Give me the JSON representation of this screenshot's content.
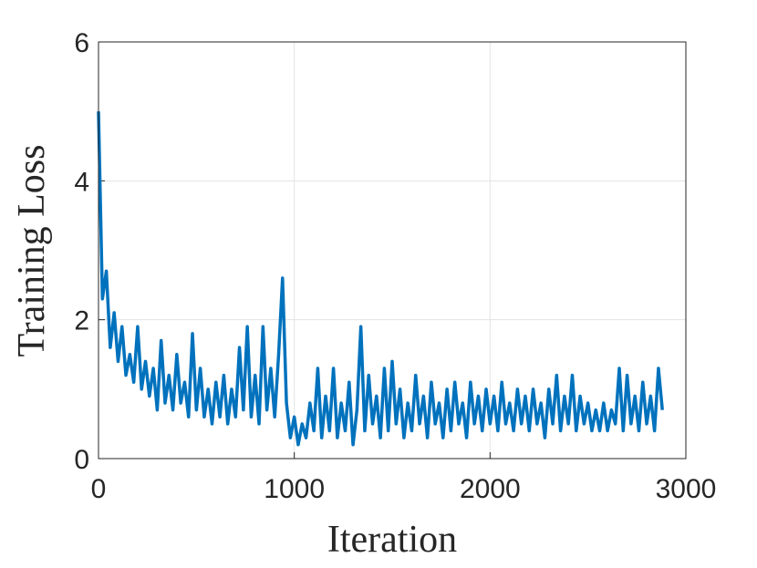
{
  "chart_data": {
    "type": "line",
    "xlabel": "Iteration",
    "ylabel": "Training Loss",
    "x": [
      0,
      20,
      40,
      60,
      80,
      100,
      120,
      140,
      160,
      180,
      200,
      220,
      240,
      260,
      280,
      300,
      320,
      340,
      360,
      380,
      400,
      420,
      440,
      460,
      480,
      500,
      520,
      540,
      560,
      580,
      600,
      620,
      640,
      660,
      680,
      700,
      720,
      740,
      760,
      780,
      800,
      820,
      840,
      860,
      880,
      900,
      920,
      940,
      960,
      980,
      1000,
      1020,
      1040,
      1060,
      1080,
      1100,
      1120,
      1140,
      1160,
      1180,
      1200,
      1220,
      1240,
      1260,
      1280,
      1300,
      1320,
      1340,
      1360,
      1380,
      1400,
      1420,
      1440,
      1460,
      1480,
      1500,
      1520,
      1540,
      1560,
      1580,
      1600,
      1620,
      1640,
      1660,
      1680,
      1700,
      1720,
      1740,
      1760,
      1780,
      1800,
      1820,
      1840,
      1860,
      1880,
      1900,
      1920,
      1940,
      1960,
      1980,
      2000,
      2020,
      2040,
      2060,
      2080,
      2100,
      2120,
      2140,
      2160,
      2180,
      2200,
      2220,
      2240,
      2260,
      2280,
      2300,
      2320,
      2340,
      2360,
      2380,
      2400,
      2420,
      2440,
      2460,
      2480,
      2500,
      2520,
      2540,
      2560,
      2580,
      2600,
      2620,
      2640,
      2660,
      2680,
      2700,
      2720,
      2740,
      2760,
      2780,
      2800,
      2820,
      2840,
      2860,
      2880
    ],
    "series": [
      {
        "name": "Training Loss",
        "color": "#0072bd",
        "values": [
          5.0,
          2.3,
          2.7,
          1.6,
          2.1,
          1.4,
          1.9,
          1.2,
          1.5,
          1.1,
          1.9,
          1.0,
          1.4,
          0.9,
          1.3,
          0.7,
          1.7,
          0.8,
          1.2,
          0.7,
          1.5,
          0.8,
          1.1,
          0.6,
          1.8,
          0.7,
          1.3,
          0.6,
          1.0,
          0.5,
          1.1,
          0.6,
          1.2,
          0.5,
          1.0,
          0.6,
          1.6,
          0.7,
          1.9,
          0.6,
          1.2,
          0.5,
          1.9,
          0.7,
          1.3,
          0.6,
          1.5,
          2.6,
          0.8,
          0.3,
          0.6,
          0.2,
          0.5,
          0.3,
          0.8,
          0.4,
          1.3,
          0.3,
          0.9,
          0.4,
          1.3,
          0.3,
          0.8,
          0.4,
          1.1,
          0.2,
          0.7,
          1.9,
          0.4,
          1.2,
          0.5,
          0.9,
          0.3,
          1.3,
          0.4,
          1.4,
          0.5,
          1.0,
          0.3,
          0.8,
          0.4,
          1.2,
          0.5,
          0.9,
          0.3,
          1.1,
          0.5,
          0.8,
          0.3,
          1.0,
          0.4,
          1.1,
          0.5,
          0.8,
          0.3,
          1.1,
          0.5,
          0.9,
          0.4,
          1.0,
          0.5,
          0.9,
          0.4,
          1.1,
          0.5,
          0.8,
          0.4,
          1.0,
          0.5,
          0.9,
          0.4,
          1.0,
          0.5,
          0.8,
          0.3,
          1.0,
          0.5,
          1.2,
          0.4,
          0.9,
          0.5,
          1.2,
          0.4,
          0.9,
          0.5,
          0.8,
          0.4,
          0.7,
          0.4,
          0.8,
          0.4,
          0.7,
          0.5,
          1.3,
          0.4,
          1.2,
          0.5,
          0.9,
          0.4,
          1.1,
          0.5,
          0.9,
          0.4,
          1.3,
          0.7
        ]
      }
    ],
    "xlim": [
      0,
      3000
    ],
    "xticks": [
      0,
      1000,
      2000,
      3000
    ],
    "ylim": [
      0,
      6
    ],
    "yticks": [
      0,
      2,
      4,
      6
    ],
    "grid": true
  }
}
